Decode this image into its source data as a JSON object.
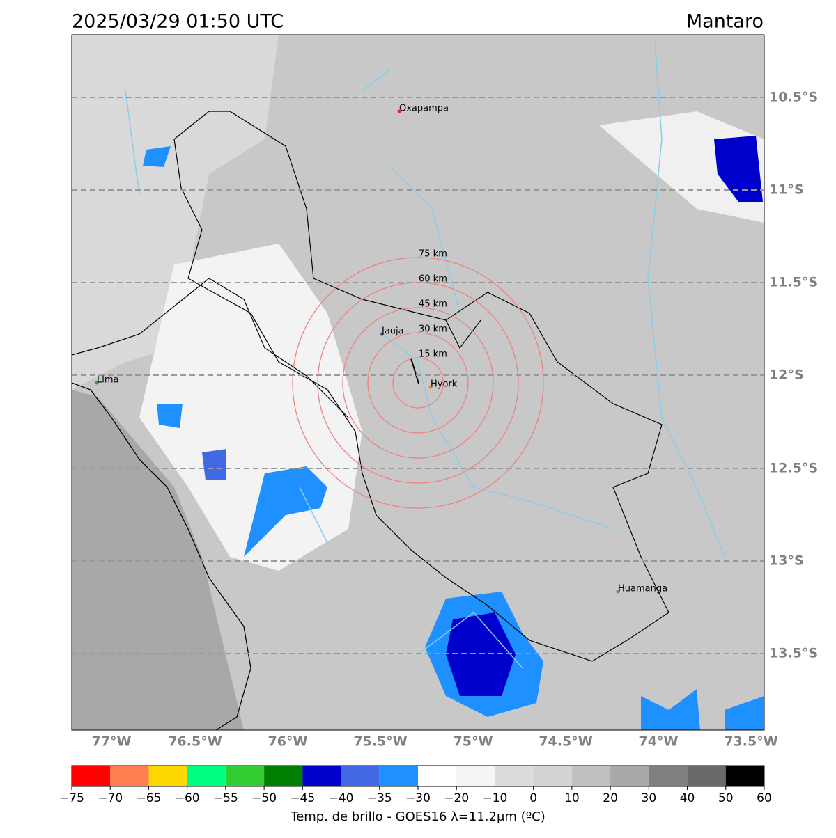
{
  "header": {
    "datetime": "2025/03/29 01:50 UTC",
    "region": "Mantaro"
  },
  "map": {
    "lon_ticks": [
      "77°W",
      "76.5°W",
      "76°W",
      "75.5°W",
      "75°W",
      "74.5°W",
      "74°W",
      "73.5°W"
    ],
    "lat_ticks": [
      "10.5°S",
      "11°S",
      "11.5°S",
      "12°S",
      "12.5°S",
      "13°S",
      "13.5°S"
    ],
    "places": [
      "Oxapampa",
      "Jauja",
      "Hyork",
      "Lima",
      "Huamanga"
    ],
    "rings": [
      "15 km",
      "30 km",
      "45 km",
      "60 km",
      "75 km"
    ]
  },
  "colorbar": {
    "ticks": [
      "−75",
      "−70",
      "−65",
      "−60",
      "−55",
      "−50",
      "−45",
      "−40",
      "−35",
      "−30",
      "−20",
      "−10",
      "0",
      "10",
      "20",
      "30",
      "40",
      "50",
      "60"
    ],
    "colors": [
      "#ff0000",
      "#ff7f50",
      "#ffd700",
      "#00ff7f",
      "#32cd32",
      "#008000",
      "#0000cd",
      "#4169e1",
      "#1e90ff",
      "#ffffff",
      "#f5f5f5",
      "#dcdcdc",
      "#d3d3d3",
      "#c0c0c0",
      "#a9a9a9",
      "#808080",
      "#696969",
      "#000000"
    ],
    "label": "Temp. de brillo - GOES16 λ=11.2μm (ºC)"
  }
}
